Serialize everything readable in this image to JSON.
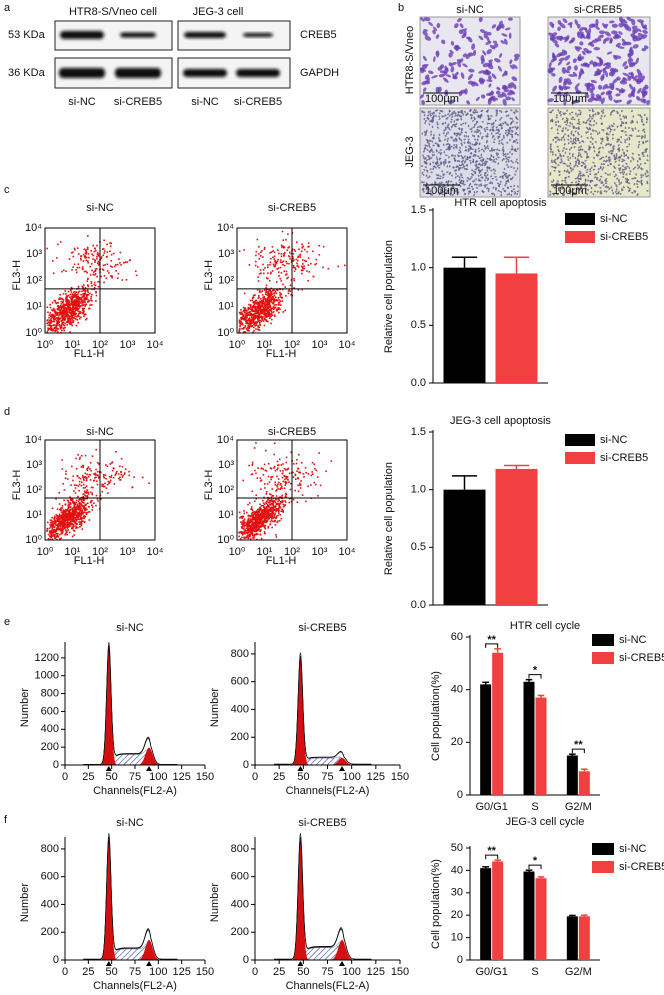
{
  "panel_labels": [
    "a",
    "b",
    "c",
    "d",
    "e",
    "f"
  ],
  "western_blot": {
    "groups": [
      "HTR8-S/Vneo cell",
      "JEG-3 cell"
    ],
    "markers": [
      "53 KDa",
      "36 KDa"
    ],
    "proteins": [
      "CREB5",
      "GAPDH"
    ],
    "lanes": [
      "si-NC",
      "si-CREB5",
      "si-NC",
      "si-CREB5"
    ]
  },
  "micrographs": {
    "columns": [
      "si-NC",
      "si-CREB5"
    ],
    "rows": [
      "HTR8-S/Vneo",
      "JEG-3"
    ],
    "scale_bar": "100μm"
  },
  "flow_cytometry": {
    "rows": [
      {
        "conditions": [
          "si-NC",
          "si-CREB5"
        ]
      },
      {
        "conditions": [
          "si-NC",
          "si-CREB5"
        ]
      }
    ],
    "x_label": "FL1-H",
    "y_label": "FL3-H",
    "ticks": [
      "10⁰",
      "10¹",
      "10²",
      "10³",
      "10⁴"
    ]
  },
  "cell_cycle_histograms": {
    "x_label": "Channels(FL2-A)",
    "y_label": "Number",
    "xlim": [
      0,
      150
    ],
    "xticks": [
      0,
      25,
      50,
      75,
      100,
      125,
      150
    ],
    "rows": [
      {
        "conditions": [
          "si-NC",
          "si-CREB5"
        ],
        "ylims": [
          [
            0,
            1400
          ],
          [
            0,
            900
          ]
        ],
        "yticks": [
          [
            0,
            200,
            400,
            600,
            800,
            1000,
            1200
          ],
          [
            0,
            200,
            400,
            600,
            800
          ]
        ]
      },
      {
        "conditions": [
          "si-NC",
          "si-CREB5"
        ],
        "ylims": [
          [
            0,
            900
          ],
          [
            0,
            900
          ]
        ],
        "yticks": [
          [
            0,
            200,
            400,
            600,
            800
          ],
          [
            0,
            200,
            400,
            600,
            800
          ]
        ]
      }
    ]
  },
  "chart_data": [
    {
      "type": "bar",
      "title": "HTR cell apoptosis",
      "y_label": "Relative cell population",
      "ylim": [
        0,
        1.5
      ],
      "yticks": [
        {
          "value": 0,
          "label": "0.0"
        },
        0.5,
        {
          "value": 1,
          "label": "1.0"
        },
        1.5
      ],
      "series": [
        {
          "name": "si-NC",
          "color": "#000000",
          "values": [
            1.0
          ],
          "errors": [
            0.09
          ]
        },
        {
          "name": "si-CREB5",
          "color": "#f23f3f",
          "values": [
            0.95
          ],
          "errors": [
            0.14
          ]
        }
      ]
    },
    {
      "type": "bar",
      "title": "JEG-3 cell apoptosis",
      "y_label": "Relative cell population",
      "ylim": [
        0,
        1.5
      ],
      "yticks": [
        {
          "value": 0,
          "label": "0.0"
        },
        0.5,
        {
          "value": 1,
          "label": "1.0"
        },
        1.5
      ],
      "series": [
        {
          "name": "si-NC",
          "color": "#000000",
          "values": [
            1.0
          ],
          "errors": [
            0.12
          ]
        },
        {
          "name": "si-CREB5",
          "color": "#f23f3f",
          "values": [
            1.18
          ],
          "errors": [
            0.03
          ]
        }
      ]
    },
    {
      "type": "bar",
      "title": "HTR cell cycle",
      "y_label": "Cell population(%)",
      "ylim": [
        0,
        60
      ],
      "yticks": [
        0,
        20,
        40,
        60
      ],
      "categories": [
        "G0/G1",
        "S",
        "G2/M"
      ],
      "significance": [
        "**",
        "*",
        "**"
      ],
      "series": [
        {
          "name": "si-NC",
          "color": "#000000",
          "values": [
            42,
            43,
            15
          ],
          "errors": [
            0.8,
            0.8,
            0.5
          ]
        },
        {
          "name": "si-CREB5",
          "color": "#f23f3f",
          "values": [
            54,
            37,
            9
          ],
          "errors": [
            1.5,
            0.8,
            0.8
          ]
        }
      ]
    },
    {
      "type": "bar",
      "title": "JEG-3 cell cycle",
      "y_label": "Cell population(%)",
      "ylim": [
        0,
        50
      ],
      "yticks": [
        0,
        10,
        20,
        30,
        40,
        50
      ],
      "categories": [
        "G0/G1",
        "S",
        "G2/M"
      ],
      "significance": [
        "**",
        "*",
        null
      ],
      "series": [
        {
          "name": "si-NC",
          "color": "#000000",
          "values": [
            41,
            39.5,
            19.5
          ],
          "errors": [
            0.6,
            0.6,
            0.4
          ]
        },
        {
          "name": "si-CREB5",
          "color": "#f23f3f",
          "values": [
            44,
            36.5,
            19.5
          ],
          "errors": [
            0.6,
            0.6,
            0.5
          ]
        }
      ]
    }
  ]
}
